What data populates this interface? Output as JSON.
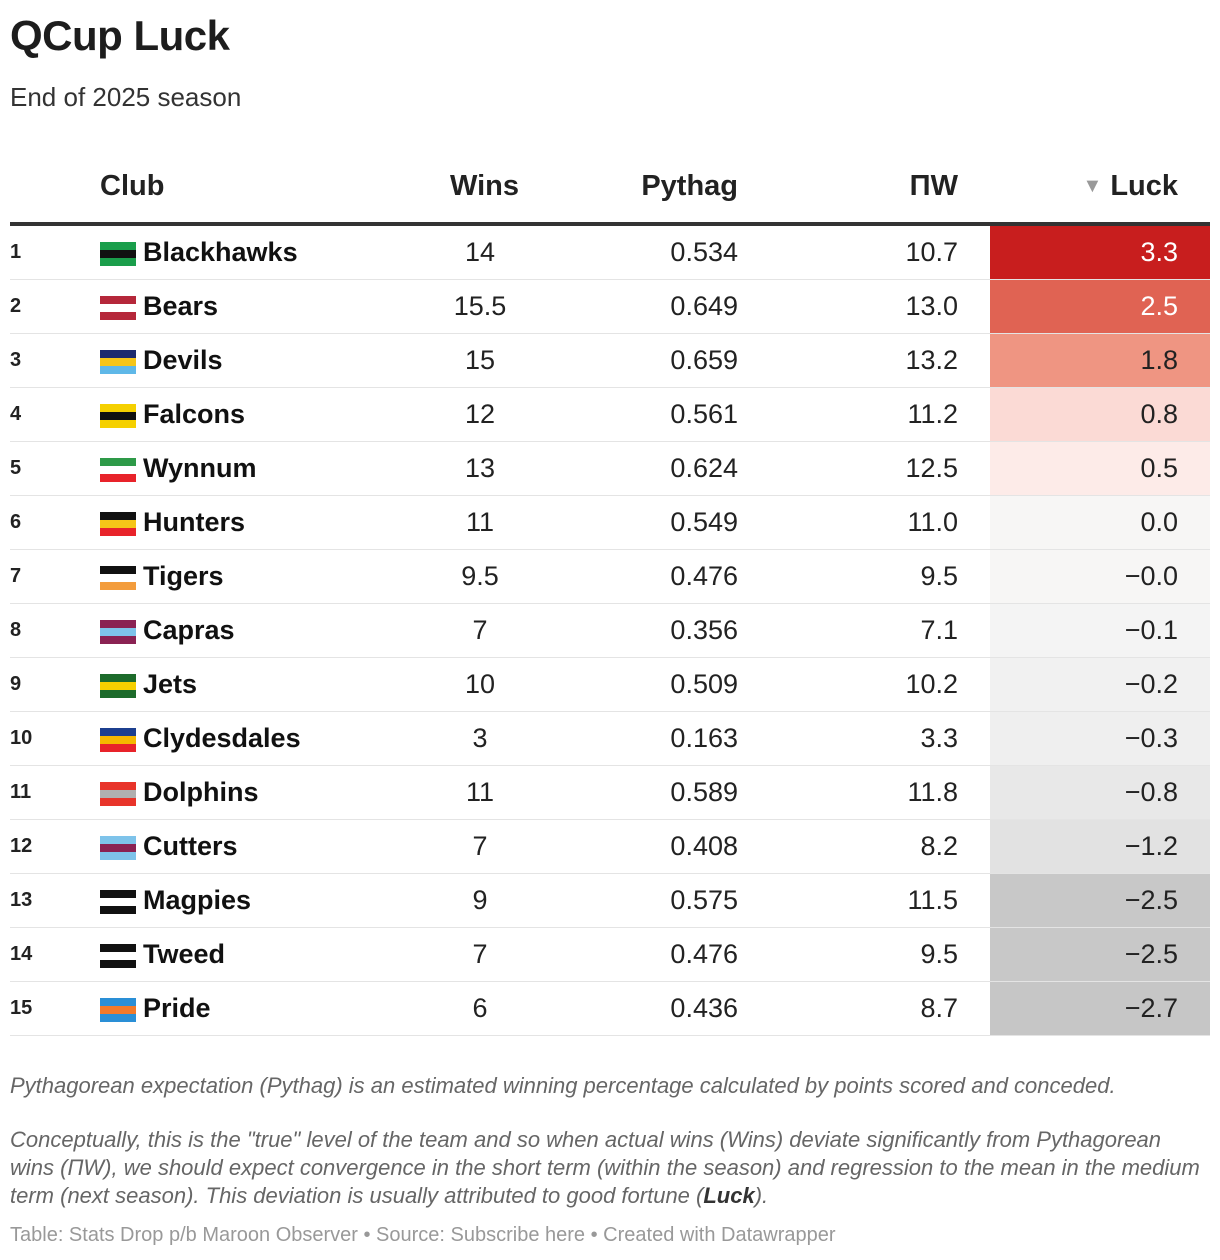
{
  "title": "QCup Luck",
  "subtitle": "End of 2025 season",
  "headers": {
    "club": "Club",
    "wins": "Wins",
    "pythag": "Pythag",
    "pw": "ΠW",
    "luck": "Luck"
  },
  "rows": [
    {
      "rank": "1",
      "club": "Blackhawks",
      "wins": "14",
      "pythag": "0.534",
      "pw": "10.7",
      "luck": "3.3",
      "luck_bg": "#c81e1e",
      "luck_fg": "#ffffff",
      "flag": [
        "#1a9e4b",
        "#111111",
        "#1a9e4b"
      ]
    },
    {
      "rank": "2",
      "club": "Bears",
      "wins": "15.5",
      "pythag": "0.649",
      "pw": "13.0",
      "luck": "2.5",
      "luck_bg": "#e06353",
      "luck_fg": "#ffffff",
      "flag": [
        "#b5273a",
        "#ffffff",
        "#b5273a"
      ]
    },
    {
      "rank": "3",
      "club": "Devils",
      "wins": "15",
      "pythag": "0.659",
      "pw": "13.2",
      "luck": "1.8",
      "luck_bg": "#ef9582",
      "luck_fg": "#222222",
      "flag": [
        "#1c2a6e",
        "#f5c518",
        "#5fb8e8"
      ]
    },
    {
      "rank": "4",
      "club": "Falcons",
      "wins": "12",
      "pythag": "0.561",
      "pw": "11.2",
      "luck": "0.8",
      "luck_bg": "#fbdad5",
      "luck_fg": "#222222",
      "flag": [
        "#f5d000",
        "#111111",
        "#f5d000"
      ]
    },
    {
      "rank": "5",
      "club": "Wynnum",
      "wins": "13",
      "pythag": "0.624",
      "pw": "12.5",
      "luck": "0.5",
      "luck_bg": "#fdebe8",
      "luck_fg": "#222222",
      "flag": [
        "#2e9a48",
        "#ffffff",
        "#e8232a"
      ]
    },
    {
      "rank": "6",
      "club": "Hunters",
      "wins": "11",
      "pythag": "0.549",
      "pw": "11.0",
      "luck": "0.0",
      "luck_bg": "#f7f6f5",
      "luck_fg": "#222222",
      "flag": [
        "#111111",
        "#f5c518",
        "#e8232a"
      ]
    },
    {
      "rank": "7",
      "club": "Tigers",
      "wins": "9.5",
      "pythag": "0.476",
      "pw": "9.5",
      "luck": "−0.0",
      "luck_bg": "#f7f6f5",
      "luck_fg": "#222222",
      "flag": [
        "#111111",
        "#ffffff",
        "#f39c3c"
      ]
    },
    {
      "rank": "8",
      "club": "Capras",
      "wins": "7",
      "pythag": "0.356",
      "pw": "7.1",
      "luck": "−0.1",
      "luck_bg": "#f4f4f4",
      "luck_fg": "#222222",
      "flag": [
        "#8a2253",
        "#7ec3ea",
        "#8a2253"
      ]
    },
    {
      "rank": "9",
      "club": "Jets",
      "wins": "10",
      "pythag": "0.509",
      "pw": "10.2",
      "luck": "−0.2",
      "luck_bg": "#f1f1f1",
      "luck_fg": "#222222",
      "flag": [
        "#1d6b2b",
        "#f5d000",
        "#1d6b2b"
      ]
    },
    {
      "rank": "10",
      "club": "Clydesdales",
      "wins": "3",
      "pythag": "0.163",
      "pw": "3.3",
      "luck": "−0.3",
      "luck_bg": "#efefef",
      "luck_fg": "#222222",
      "flag": [
        "#1c3f8f",
        "#f5b800",
        "#e8232a"
      ]
    },
    {
      "rank": "11",
      "club": "Dolphins",
      "wins": "11",
      "pythag": "0.589",
      "pw": "11.8",
      "luck": "−0.8",
      "luck_bg": "#e8e8e8",
      "luck_fg": "#222222",
      "flag": [
        "#e8342a",
        "#b0b0b0",
        "#e8342a"
      ]
    },
    {
      "rank": "12",
      "club": "Cutters",
      "wins": "7",
      "pythag": "0.408",
      "pw": "8.2",
      "luck": "−1.2",
      "luck_bg": "#e2e2e2",
      "luck_fg": "#222222",
      "flag": [
        "#7ec3ea",
        "#8a2253",
        "#7ec3ea"
      ]
    },
    {
      "rank": "13",
      "club": "Magpies",
      "wins": "9",
      "pythag": "0.575",
      "pw": "11.5",
      "luck": "−2.5",
      "luck_bg": "#c8c8c8",
      "luck_fg": "#222222",
      "flag": [
        "#111111",
        "#ffffff",
        "#111111"
      ]
    },
    {
      "rank": "14",
      "club": "Tweed",
      "wins": "7",
      "pythag": "0.476",
      "pw": "9.5",
      "luck": "−2.5",
      "luck_bg": "#c8c8c8",
      "luck_fg": "#222222",
      "flag": [
        "#111111",
        "#ffffff",
        "#111111"
      ]
    },
    {
      "rank": "15",
      "club": "Pride",
      "wins": "6",
      "pythag": "0.436",
      "pw": "8.7",
      "luck": "−2.7",
      "luck_bg": "#c6c6c6",
      "luck_fg": "#222222",
      "flag": [
        "#2a8fd6",
        "#f27a2a",
        "#2a8fd6"
      ]
    }
  ],
  "notes": {
    "p1": "Pythagorean expectation (Pythag) is an estimated winning percentage calculated by points scored and conceded.",
    "p2": "Conceptually, this is the \"true\" level of the team and so when actual wins (Wins) deviate significantly from Pythagorean wins (ΠW), we should expect convergence in the short term (within the season) and regression to the mean in the medium term (next season). This deviation is usually attributed to good fortune (",
    "p2_bold": "Luck",
    "p2_end": ")."
  },
  "footer": "Table: Stats Drop p/b Maroon Observer • Source: Subscribe here • Created with Datawrapper"
}
